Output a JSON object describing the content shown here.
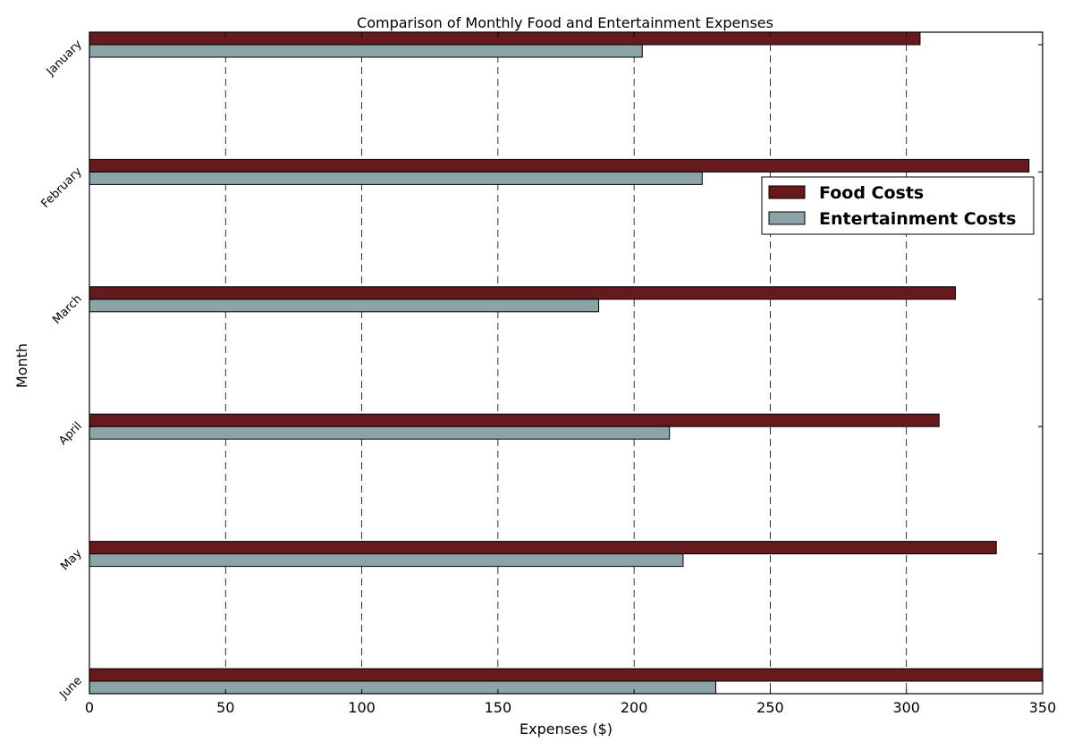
{
  "chart_data": {
    "type": "bar",
    "orientation": "horizontal",
    "title": "Comparison of Monthly Food and Entertainment Expenses",
    "xlabel": "Expenses ($)",
    "ylabel": "Month",
    "categories": [
      "January",
      "February",
      "March",
      "April",
      "May",
      "June"
    ],
    "series": [
      {
        "name": "Food Costs",
        "color": "#661a1d",
        "values": [
          305,
          345,
          318,
          312,
          333,
          350
        ]
      },
      {
        "name": "Entertainment Costs",
        "color": "#8ca3a8",
        "values": [
          203,
          225,
          187,
          213,
          218,
          230
        ]
      }
    ],
    "xlim": [
      0,
      350
    ],
    "xticks": [
      0,
      50,
      100,
      150,
      200,
      250,
      300,
      350
    ],
    "grid": "x-dashed",
    "legend_position": "upper-right"
  }
}
